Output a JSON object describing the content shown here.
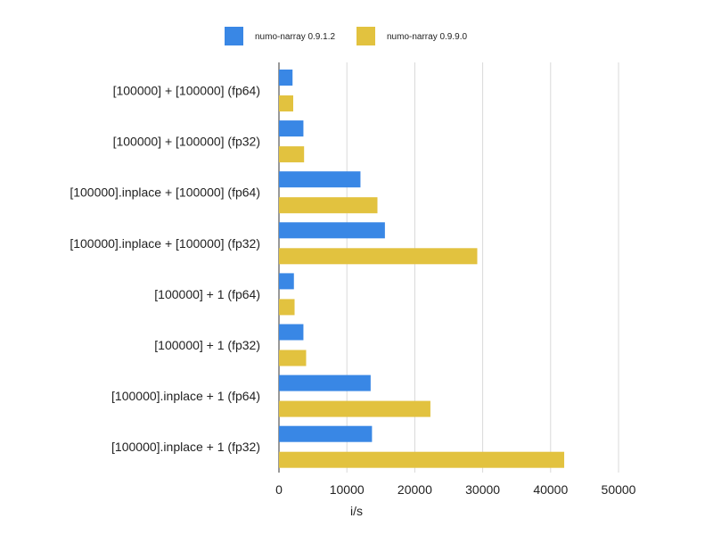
{
  "chart_data": {
    "type": "bar",
    "orientation": "horizontal",
    "categories": [
      "[100000] + [100000] (fp64)",
      "[100000] + [100000] (fp32)",
      "[100000].inplace + [100000] (fp64)",
      "[100000].inplace + [100000] (fp32)",
      "[100000] + 1 (fp64)",
      "[100000] + 1 (fp32)",
      "[100000].inplace + 1 (fp64)",
      "[100000].inplace + 1 (fp32)"
    ],
    "series": [
      {
        "name": "numo-narray 0.9.1.2",
        "color": "#3987e5",
        "values": [
          2000,
          3600,
          12000,
          15600,
          2200,
          3600,
          13500,
          13700
        ]
      },
      {
        "name": "numo-narray 0.9.9.0",
        "color": "#e2c23f",
        "values": [
          2100,
          3700,
          14500,
          29200,
          2300,
          4000,
          22300,
          42000
        ]
      }
    ],
    "xlabel": "i/s",
    "ylabel": "",
    "xlim": [
      0,
      50000
    ],
    "xticks": [
      0,
      10000,
      20000,
      30000,
      40000,
      50000
    ],
    "xtick_labels": [
      "0",
      "10000",
      "20000",
      "30000",
      "40000",
      "50000"
    ],
    "grid": "vertical",
    "legend_position": "top"
  }
}
